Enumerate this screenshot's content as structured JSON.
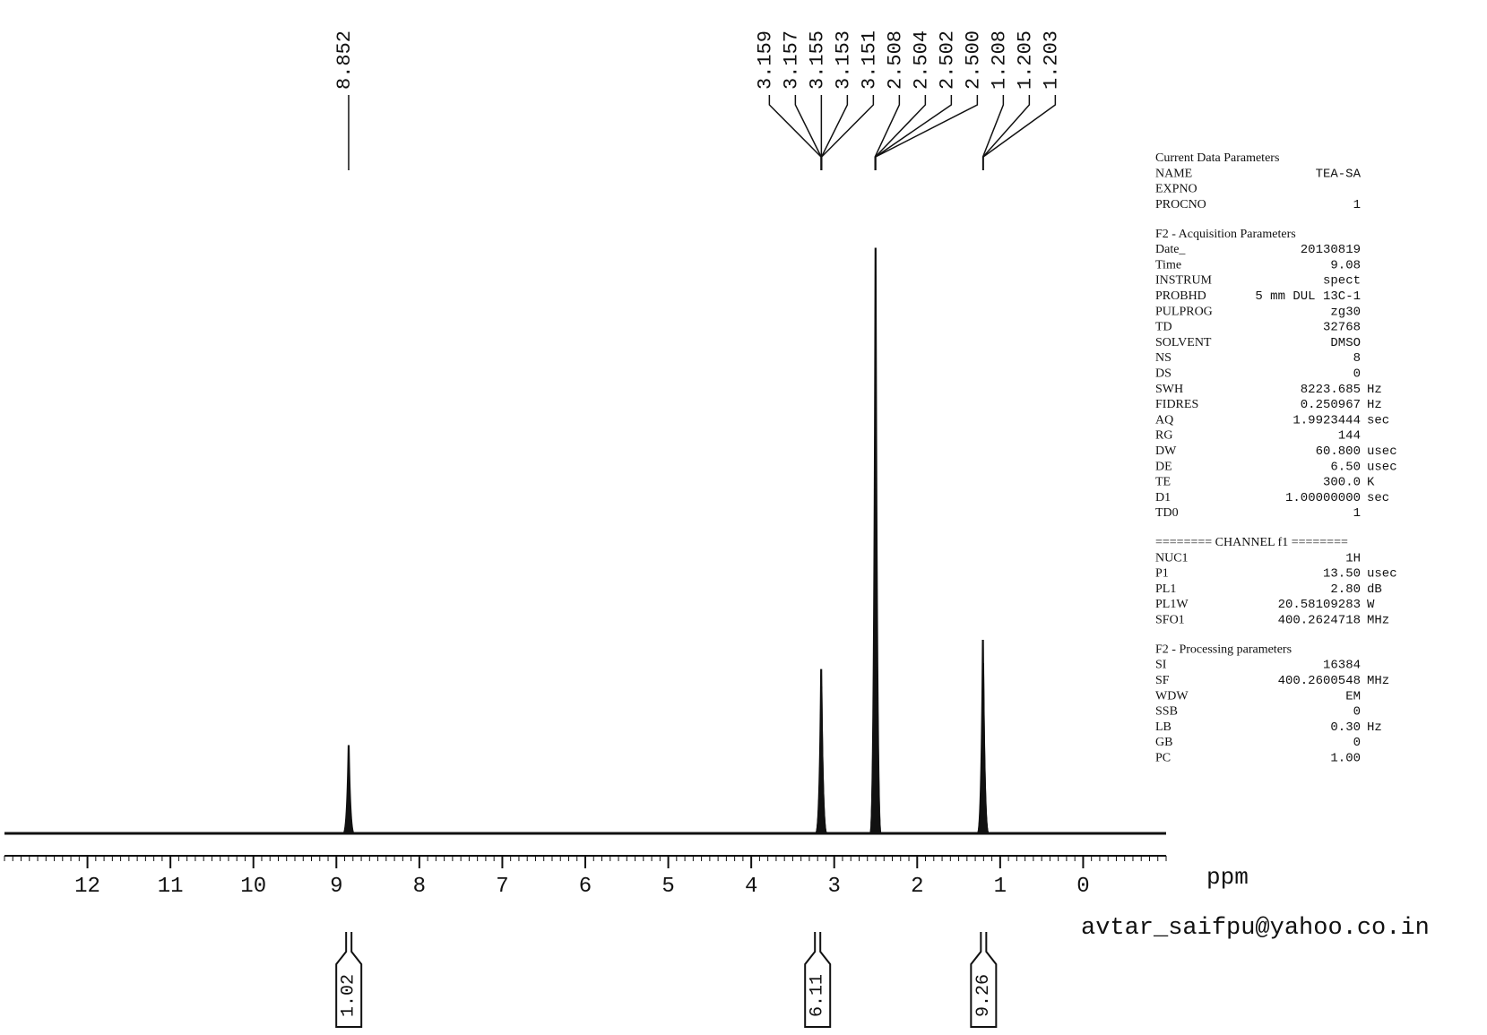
{
  "chart_data": {
    "type": "spectrum",
    "xlabel": "ppm",
    "xlim": [
      13,
      -1
    ],
    "xticks": [
      12,
      11,
      10,
      9,
      8,
      7,
      6,
      5,
      4,
      3,
      2,
      1,
      0
    ],
    "xminor": 0.1,
    "ylim": [
      0,
      100
    ],
    "color": "#111111",
    "peaks": {
      "x": [
        8.852,
        3.159,
        3.157,
        3.155,
        3.153,
        3.151,
        2.508,
        2.504,
        2.502,
        2.5,
        1.208,
        1.205,
        1.203
      ],
      "x_labels": [
        "8.852",
        "3.159",
        "3.157",
        "3.155",
        "3.153",
        "3.151",
        "2.508",
        "2.504",
        "2.502",
        "2.500",
        "1.208",
        "1.205",
        "1.203"
      ],
      "values": [
        15,
        19,
        28,
        25,
        11,
        6,
        4,
        30,
        100,
        30,
        33,
        29,
        19
      ]
    },
    "integrals": [
      {
        "from": 8.95,
        "to": 8.75,
        "value": 1.02
      },
      {
        "from": 3.3,
        "to": 3.1,
        "value": 6.11
      },
      {
        "from": 1.28,
        "to": 1.12,
        "value": 9.26
      }
    ]
  },
  "parameters": [
    {
      "title": "Current Data Parameters",
      "rows": [
        [
          "NAME",
          "TEA-SA"
        ],
        [
          "EXPNO"
        ],
        [
          "PROCNO",
          "1"
        ]
      ]
    },
    {
      "title": "F2 - Acquisition Parameters",
      "rows": [
        [
          "Date_",
          "20130819"
        ],
        [
          "Time",
          "9.08"
        ],
        [
          "INSTRUM",
          "spect"
        ],
        [
          "PROBHD",
          "5 mm DUL 13C-1"
        ],
        [
          "PULPROG",
          "zg30"
        ],
        [
          "TD",
          "32768"
        ],
        [
          "SOLVENT",
          "DMSO"
        ],
        [
          "NS",
          "8"
        ],
        [
          "DS",
          "0"
        ],
        [
          "SWH",
          "8223.685",
          "Hz"
        ],
        [
          "FIDRES",
          "0.250967",
          "Hz"
        ],
        [
          "AQ",
          "1.9923444",
          "sec"
        ],
        [
          "RG",
          "144"
        ],
        [
          "DW",
          "60.800",
          "usec"
        ],
        [
          "DE",
          "6.50",
          "usec"
        ],
        [
          "TE",
          "300.0",
          "K"
        ],
        [
          "D1",
          "1.00000000",
          "sec"
        ],
        [
          "TD0",
          "1"
        ]
      ]
    },
    {
      "title": "======== CHANNEL f1 ========",
      "rows": [
        [
          "NUC1",
          "1H"
        ],
        [
          "P1",
          "13.50",
          "usec"
        ],
        [
          "PL1",
          "2.80",
          "dB"
        ],
        [
          "PL1W",
          "20.58109283",
          "W"
        ],
        [
          "SFO1",
          "400.2624718",
          "MHz"
        ]
      ]
    },
    {
      "title": "F2 - Processing parameters",
      "rows": [
        [
          "SI",
          "16384"
        ],
        [
          "SF",
          "400.2600548",
          "MHz"
        ],
        [
          "WDW",
          "EM"
        ],
        [
          "SSB",
          "0"
        ],
        [
          "LB",
          "0.30",
          "Hz"
        ],
        [
          "GB",
          "0"
        ],
        [
          "PC",
          "1.00"
        ]
      ]
    }
  ],
  "footer": {
    "email": "avtar_saifpu@yahoo.co.in"
  }
}
